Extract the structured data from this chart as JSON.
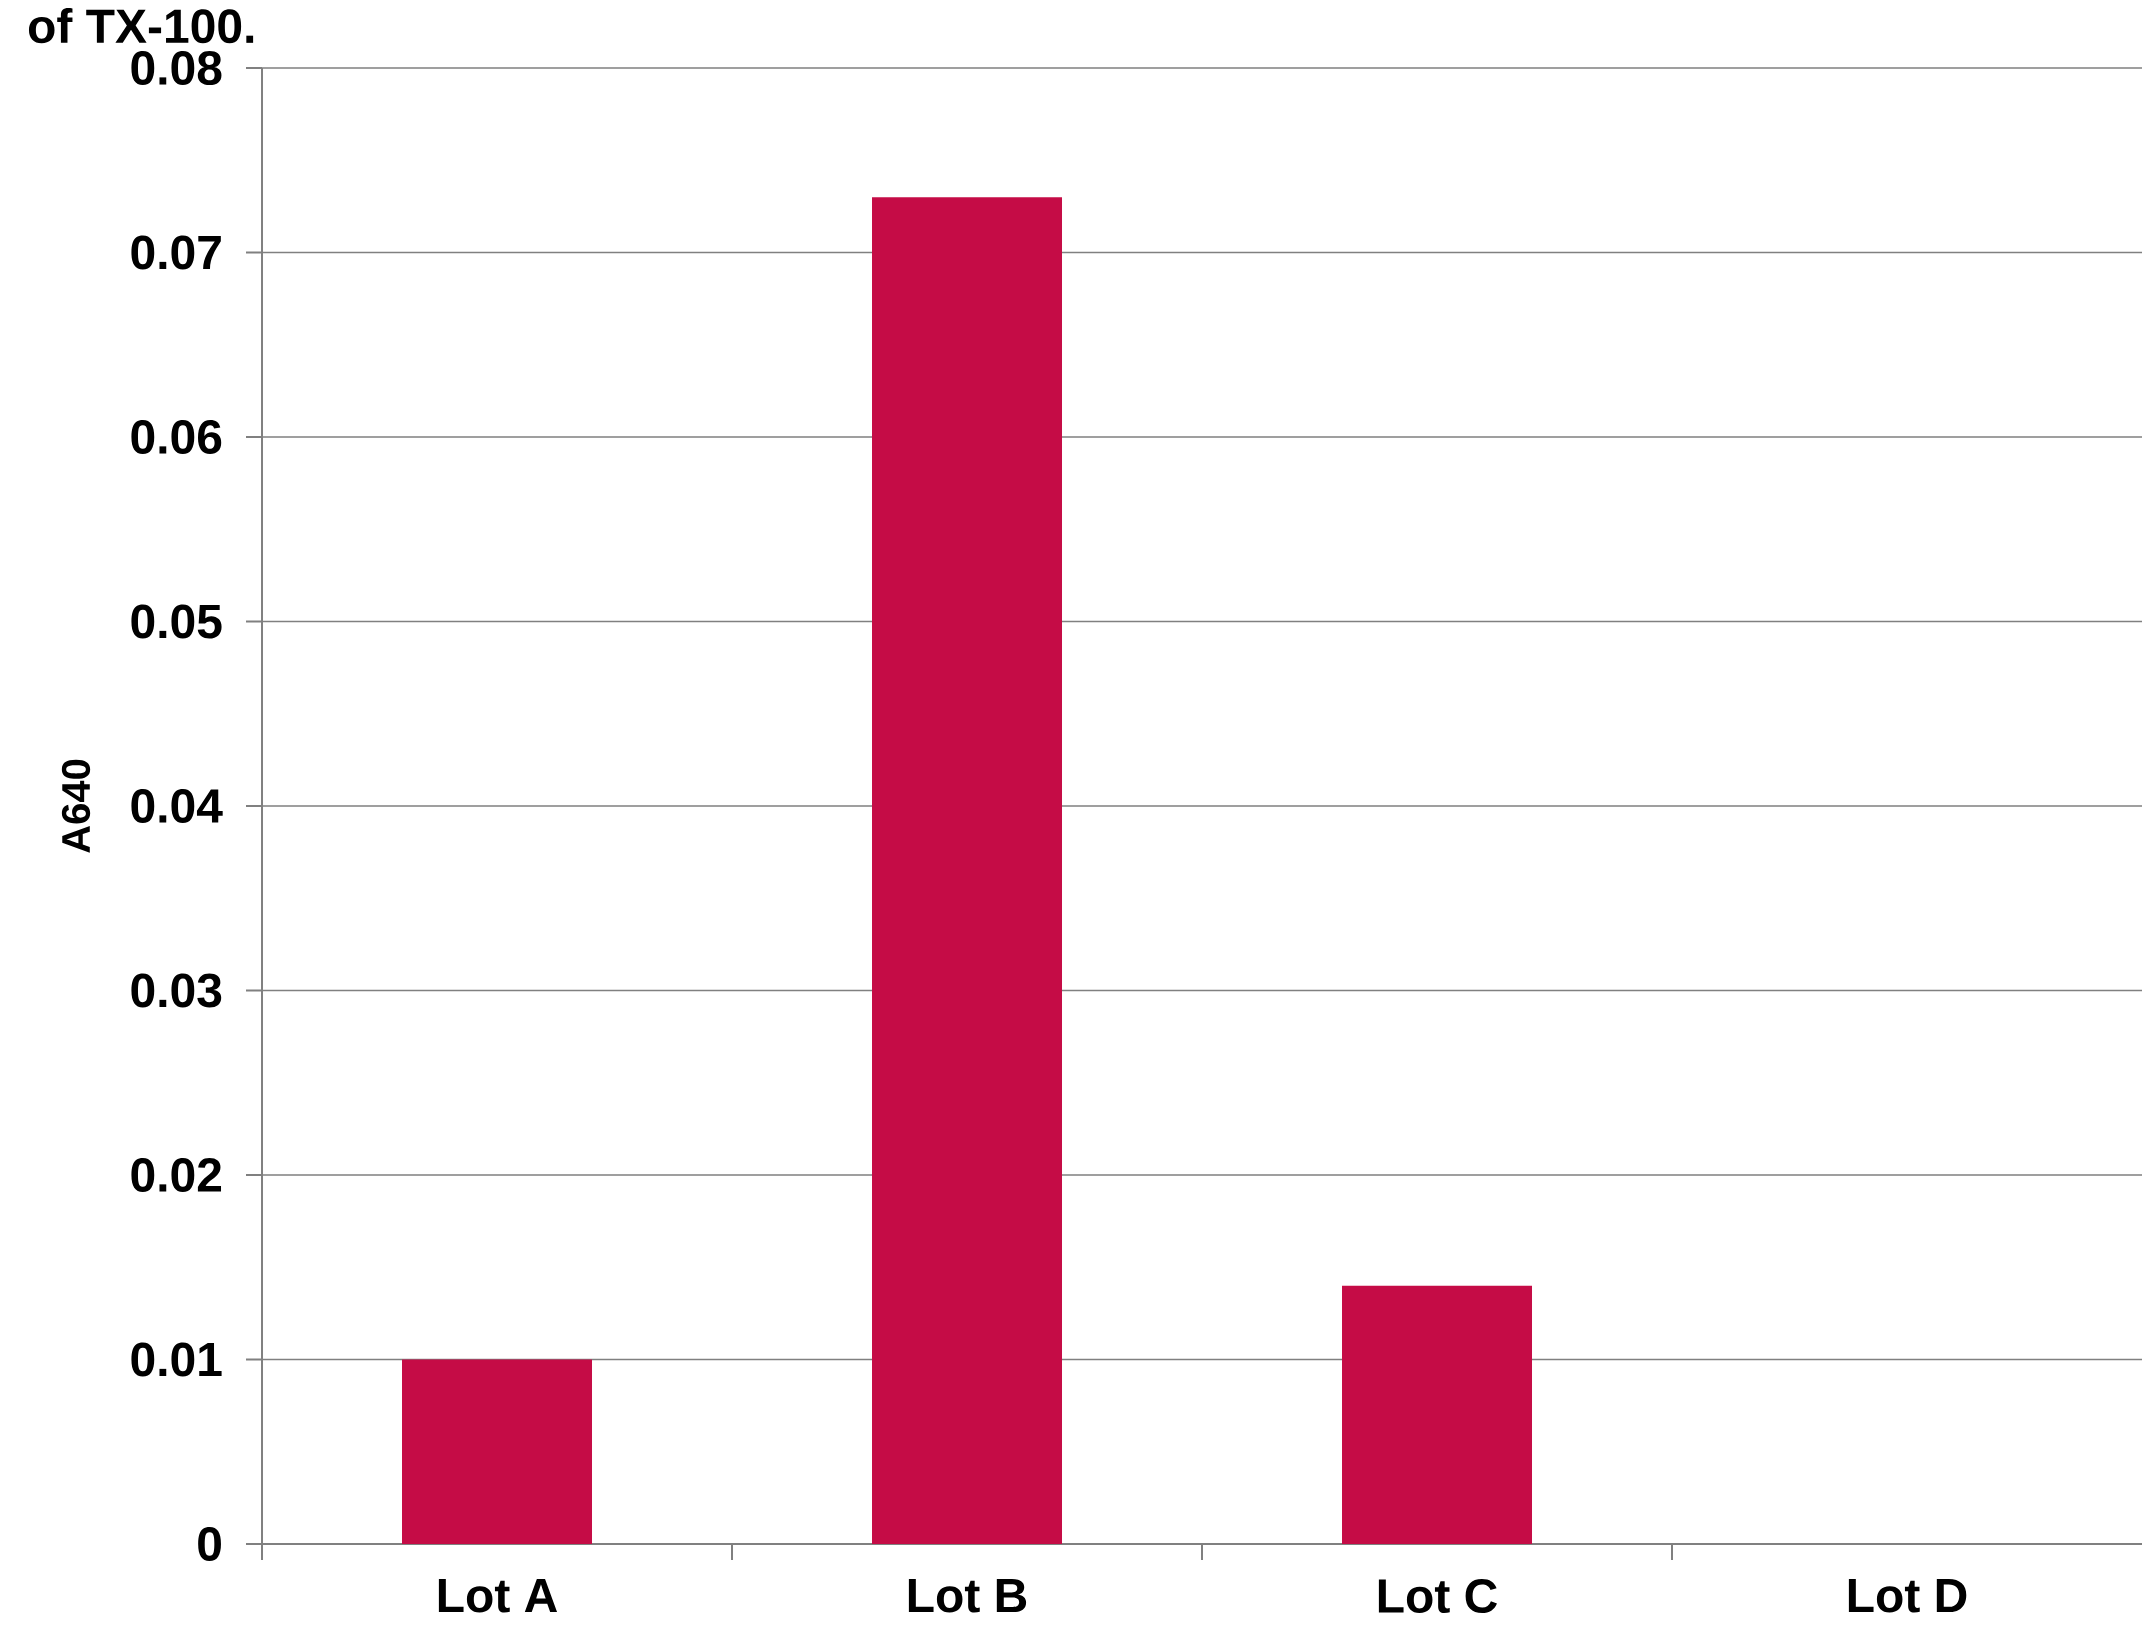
{
  "chart_data": {
    "type": "bar",
    "title": "of TX-100.",
    "ylabel": "A640",
    "categories": [
      "Lot A",
      "Lot B",
      "Lot C",
      "Lot D"
    ],
    "values": [
      0.01,
      0.073,
      0.014,
      0
    ],
    "color": "#c50c46",
    "ylim": [
      0,
      0.08
    ],
    "yticks": [
      0,
      0.01,
      0.02,
      0.03,
      0.04,
      0.05,
      0.06,
      0.07,
      0.08
    ],
    "grid": "y"
  }
}
